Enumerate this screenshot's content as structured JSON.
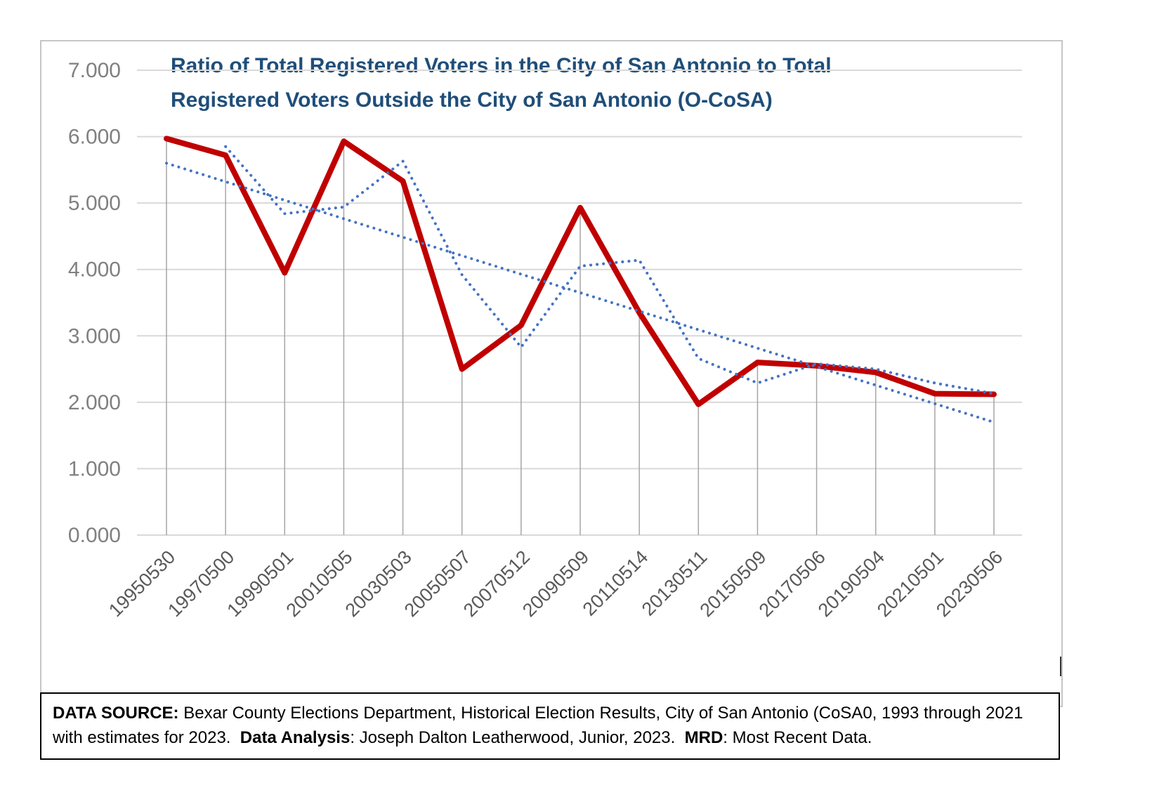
{
  "chart_data": {
    "type": "line",
    "title": "Ratio of Total Registered Voters in the City of San Antonio to Total Registered Voters Outside the City of San Antonio (O-CoSA)",
    "categories": [
      "19950530",
      "19970500",
      "19990501",
      "20010505",
      "20030503",
      "20050507",
      "20070512",
      "20090509",
      "20110514",
      "20130511",
      "20150509",
      "20170506",
      "20190504",
      "20210501",
      "20230506"
    ],
    "series": [
      {
        "data_name": "series-red-solid-ratio",
        "kind": "line",
        "color": "#c00000",
        "width": 8,
        "dash": "solid",
        "start_index": 0,
        "values": [
          5.97,
          5.72,
          3.95,
          5.93,
          5.33,
          2.5,
          3.16,
          4.93,
          3.35,
          1.97,
          2.6,
          2.55,
          2.45,
          2.13,
          2.12
        ]
      },
      {
        "data_name": "series-blue-dotted-moving-average",
        "kind": "line",
        "color": "#4472c4",
        "width": 4,
        "dash": "dotted",
        "start_index": 1,
        "values": [
          5.85,
          4.84,
          4.94,
          5.63,
          3.92,
          2.83,
          4.05,
          4.14,
          2.66,
          2.29,
          2.58,
          2.5,
          2.29,
          2.13
        ]
      },
      {
        "data_name": "series-blue-dotted-linear-trend",
        "kind": "trend",
        "color": "#4472c4",
        "width": 4,
        "dash": "dotted",
        "start_value": 5.6,
        "end_value": 1.7
      }
    ],
    "yticks": [
      "7.000",
      "6.000",
      "5.000",
      "4.000",
      "3.000",
      "2.000",
      "1.000",
      "0.000"
    ],
    "ylim": [
      0,
      7
    ],
    "xlabel": "",
    "ylabel": "",
    "grid": true,
    "drop_lines": true,
    "legend": "none",
    "colors": {
      "title": "#1f4e79",
      "grid": "#d9d9d9",
      "axis_labels": "#808080",
      "x_labels": "#595959",
      "drop_lines": "#a6a6a6"
    }
  },
  "caption": {
    "segments": [
      {
        "text": "DATA SOURCE:",
        "bold": true
      },
      {
        "text": " Bexar County Elections Department, Historical Election Results, City of San Antonio (CoSA0, 1993 through 2021 with estimates for 2023.  ",
        "bold": false
      },
      {
        "text": "Data Analysis",
        "bold": true
      },
      {
        "text": ": Joseph Dalton Leatherwood, Junior, 2023.  ",
        "bold": false
      },
      {
        "text": "MRD",
        "bold": true
      },
      {
        "text": ": Most Recent Data.",
        "bold": false
      }
    ]
  }
}
